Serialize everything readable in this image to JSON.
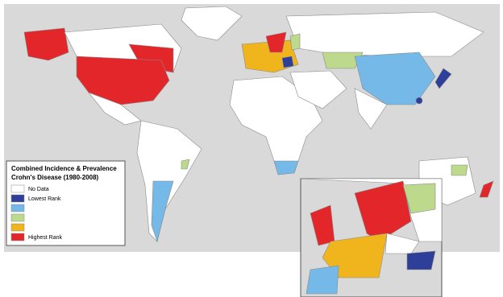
{
  "legend": {
    "title": [
      "Combined Incidence & Prevalence",
      "Crohn's Disease (1980-2008)"
    ],
    "entries": [
      {
        "label": "No Data",
        "color": "#ffffff"
      },
      {
        "label": "Lowest Rank",
        "color": "#2e3f99"
      },
      {
        "color": "#74b9e8"
      },
      {
        "color": "#bcd98c"
      },
      {
        "color": "#f0b41c"
      },
      {
        "label": "Highest Rank",
        "color": "#e3262a"
      }
    ]
  }
}
